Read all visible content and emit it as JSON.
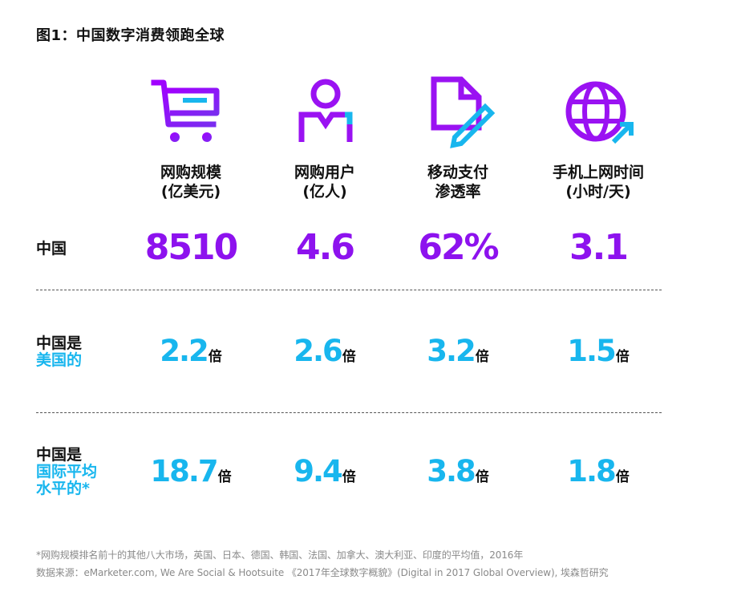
{
  "title": "图1：中国数字消费领跑全球",
  "columns": [
    {
      "icon": "shopping-cart-icon",
      "line1": "网购规模",
      "line2": "(亿美元)"
    },
    {
      "icon": "user-icon",
      "line1": "网购用户",
      "line2": "(亿人)"
    },
    {
      "icon": "document-edit-icon",
      "line1": "移动支付",
      "line2": "渗透率"
    },
    {
      "icon": "globe-icon",
      "line1": "手机上网时间",
      "line2": "(小时/天)"
    }
  ],
  "rows": [
    {
      "label_line1": "中国",
      "values": [
        "8510",
        "4.6",
        "62%",
        "3.1"
      ]
    },
    {
      "label_line1": "中国是",
      "label_line2": "美国的",
      "values": [
        "2.2",
        "2.6",
        "3.2",
        "1.5"
      ],
      "unit": "倍"
    },
    {
      "label_line1": "中国是",
      "label_line2": "国际平均",
      "label_line3": "水平的*",
      "values": [
        "18.7",
        "9.4",
        "3.8",
        "1.8"
      ],
      "unit": "倍"
    }
  ],
  "footnotes": {
    "note": "*网购规模排名前十的其他八大市场，英国、日本、德国、韩国、法国、加拿大、澳大利亚、印度的平均值，2016年",
    "source": "数据来源：eMarketer.com, We Are Social & Hootsuite 《2017年全球数字概貌》(Digital in 2017 Global Overview), 埃森哲研究"
  },
  "colors": {
    "purple": "#8d12ee",
    "blue": "#18b6ee",
    "text": "#111111",
    "muted": "#8a8a8a"
  }
}
